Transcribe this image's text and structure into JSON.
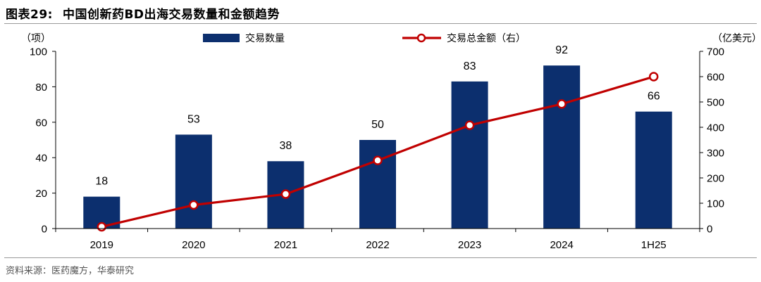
{
  "header": {
    "figure_number": "图表29:",
    "title": "中国创新药BD出海交易数量和金额趋势"
  },
  "footer": {
    "source": "资料来源：医药魔方，华泰研究"
  },
  "colors": {
    "bar": "#0c2f6e",
    "line": "#c00000",
    "axis": "#000000"
  },
  "chart_data": {
    "type": "bar",
    "title": "中国创新药BD出海交易数量和金额趋势",
    "categories": [
      "2019",
      "2020",
      "2021",
      "2022",
      "2023",
      "2024",
      "1H25"
    ],
    "series": [
      {
        "name": "交易数量",
        "type": "bar",
        "axis": "left",
        "values": [
          18,
          53,
          38,
          50,
          83,
          92,
          66
        ],
        "data_labels": [
          "18",
          "53",
          "38",
          "50",
          "83",
          "92",
          "66"
        ]
      },
      {
        "name": "交易总金额（右）",
        "type": "line",
        "axis": "right",
        "values": [
          7,
          93,
          136,
          269,
          408,
          492,
          600
        ]
      }
    ],
    "left_axis": {
      "unit_label": "（项）",
      "ylim": [
        0,
        100
      ],
      "ticks": [
        0,
        20,
        40,
        60,
        80,
        100
      ]
    },
    "right_axis": {
      "unit_label": "（亿美元）",
      "ylim": [
        0,
        700
      ],
      "ticks": [
        0,
        100,
        200,
        300,
        400,
        500,
        600,
        700
      ]
    },
    "legend": {
      "placement": "top",
      "entries": [
        "交易数量",
        "交易总金额（右）"
      ]
    },
    "grid": false
  }
}
